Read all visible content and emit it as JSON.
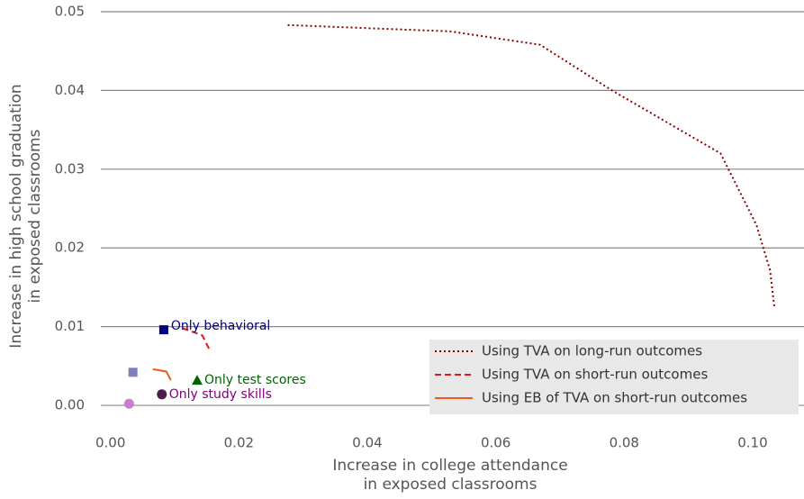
{
  "chart_data": {
    "type": "line",
    "xlabel": [
      "Increase in college attendance",
      "in exposed classrooms"
    ],
    "ylabel": [
      "Increase in high school graduation",
      "in exposed classrooms"
    ],
    "xlim": [
      -0.0015,
      0.108
    ],
    "ylim": [
      -0.0025,
      0.0505
    ],
    "xticks": [
      {
        "value": 0,
        "label": "0.00"
      },
      {
        "value": 0.02,
        "label": "0.02"
      },
      {
        "value": 0.04,
        "label": "0.04"
      },
      {
        "value": 0.06,
        "label": "0.06"
      },
      {
        "value": 0.08,
        "label": "0.08"
      },
      {
        "value": 0.1,
        "label": "0.10"
      }
    ],
    "yticks": [
      {
        "value": 0,
        "label": "0.00"
      },
      {
        "value": 0.01,
        "label": "0.01"
      },
      {
        "value": 0.02,
        "label": "0.02"
      },
      {
        "value": 0.03,
        "label": "0.03"
      },
      {
        "value": 0.04,
        "label": "0.04"
      },
      {
        "value": 0.05,
        "label": "0.05"
      }
    ],
    "grid": true,
    "legend": "lower right",
    "series": [
      {
        "name": "Using TVA on long-run outcomes",
        "color": "#8b0000",
        "style": "dotted",
        "x": [
          0.0276,
          0.0529,
          0.0669,
          0.0781,
          0.095,
          0.1006,
          0.1027,
          0.1034
        ],
        "y": [
          0.0483,
          0.0475,
          0.0458,
          0.04,
          0.032,
          0.0229,
          0.0172,
          0.0124
        ]
      },
      {
        "name": "Using TVA on short-run outcomes",
        "color": "#e31a1c",
        "style": "dashed",
        "x": [
          0.0112,
          0.0143,
          0.0154
        ],
        "y": [
          0.0098,
          0.0089,
          0.0071
        ]
      },
      {
        "name": "Using EB of TVA on short-run outcomes",
        "color": "#f05a1e",
        "style": "solid",
        "x": [
          0.0066,
          0.0087,
          0.0094
        ],
        "y": [
          0.0046,
          0.0043,
          0.0032
        ]
      }
    ],
    "points": [
      {
        "x": 0.0083,
        "y": 0.0096,
        "color": "#000080",
        "marker": "square",
        "label": "Only behavioral"
      },
      {
        "x": 0.0035,
        "y": 0.0042,
        "color": "#7f7fbf",
        "marker": "square"
      },
      {
        "x": 0.0135,
        "y": 0.0032,
        "color": "#006400",
        "marker": "triangle",
        "label": "Only test scores"
      },
      {
        "x": 0.008,
        "y": 0.0014,
        "color": "#4b1f4b",
        "marker": "circle",
        "label": "Only study skills",
        "label_color": "#800080"
      },
      {
        "x": 0.0029,
        "y": 0.0002,
        "color": "#c77fc7",
        "marker": "circle"
      }
    ]
  }
}
